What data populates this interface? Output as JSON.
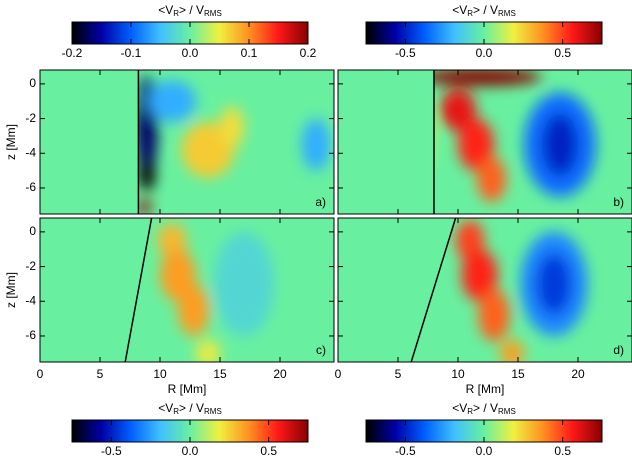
{
  "chart_data": {
    "type": "heatmap",
    "xlabel": "R [Mm]",
    "ylabel": "z [Mm]",
    "xlim": [
      0,
      24.5
    ],
    "ylim": [
      -7.5,
      0.8
    ],
    "xticks": [
      0,
      5,
      10,
      15,
      20
    ],
    "yticks": [
      0,
      -2,
      -4,
      -6
    ],
    "colormap": [
      "#000000",
      "#0000a8",
      "#0060ff",
      "#40c0ff",
      "#68f0a0",
      "#f0f040",
      "#ff9020",
      "#ff1818",
      "#880000"
    ],
    "colorbars": [
      {
        "label": [
          "<V",
          "R",
          "> / V",
          "RMS"
        ],
        "lim": [
          -0.2,
          0.2
        ],
        "ticks": [
          -0.2,
          -0.1,
          {
            "value": 0,
            "label": "0.0"
          },
          0.1,
          0.2
        ]
      },
      {
        "label": [
          "<V",
          "R",
          "> / V",
          "RMS"
        ],
        "lim": [
          -0.75,
          0.75
        ],
        "ticks": [
          -0.5,
          {
            "value": 0,
            "label": "0.0"
          },
          0.5
        ]
      },
      {
        "label": [
          "<V",
          "R",
          "> / V",
          "RMS"
        ],
        "lim": [
          -0.75,
          0.75
        ],
        "ticks": [
          -0.5,
          {
            "value": 0,
            "label": "0.0"
          },
          0.5
        ]
      },
      {
        "label": [
          "<V",
          "R",
          "> / V",
          "RMS"
        ],
        "lim": [
          -0.75,
          0.75
        ],
        "ticks": [
          -0.5,
          {
            "value": 0,
            "label": "0.0"
          },
          0.5
        ]
      }
    ],
    "panels": [
      {
        "label": "a)",
        "background": 0,
        "boundary": [
          8.2,
          8.2
        ],
        "blobs": [
          {
            "R": 8.9,
            "z": -2.5,
            "dR": 0.9,
            "dz": 3,
            "value": -0.17
          },
          {
            "R": 8.9,
            "z": -5.2,
            "dR": 0.7,
            "dz": 1,
            "value": -0.2
          },
          {
            "R": 8.7,
            "z": -7.1,
            "dR": 0.6,
            "dz": 0.4,
            "value": 0.2
          },
          {
            "R": 14,
            "z": -3.8,
            "dR": 2.2,
            "dz": 1.6,
            "value": 0.07
          },
          {
            "R": 16,
            "z": -2.5,
            "dR": 1,
            "dz": 1.2,
            "value": 0.06
          },
          {
            "R": 11,
            "z": -1,
            "dR": 2,
            "dz": 1.2,
            "value": -0.06
          },
          {
            "R": 23,
            "z": -3.5,
            "dR": 1.2,
            "dz": 1.5,
            "value": -0.06
          }
        ]
      },
      {
        "label": "b)",
        "background": 0,
        "boundary": [
          8.0,
          8.0
        ],
        "blobs": [
          {
            "R": 5,
            "z": -3,
            "dR": 3,
            "dz": 3,
            "value": 0.12
          },
          {
            "R": 12,
            "z": 0.4,
            "dR": 5,
            "dz": 0.5,
            "value": 0.75
          },
          {
            "R": 10,
            "z": -1.5,
            "dR": 1.5,
            "dz": 1.2,
            "value": 0.6
          },
          {
            "R": 11.5,
            "z": -3.5,
            "dR": 1.5,
            "dz": 1.5,
            "value": 0.55
          },
          {
            "R": 12.8,
            "z": -5.5,
            "dR": 1.2,
            "dz": 1.3,
            "value": 0.45
          },
          {
            "R": 18.5,
            "z": -3.5,
            "dR": 3,
            "dz": 3,
            "value": -0.35
          },
          {
            "R": 18.5,
            "z": -3.5,
            "dR": 1.5,
            "dz": 1.8,
            "value": -0.5
          }
        ]
      },
      {
        "label": "c)",
        "background": 0,
        "boundary": [
          9.3,
          7.1
        ],
        "blobs": [
          {
            "R": 11,
            "z": -0.5,
            "dR": 1.2,
            "dz": 1,
            "value": 0.3
          },
          {
            "R": 11.5,
            "z": -2.5,
            "dR": 1.5,
            "dz": 1.5,
            "value": 0.35
          },
          {
            "R": 12.8,
            "z": -4.5,
            "dR": 1.3,
            "dz": 1.5,
            "value": 0.35
          },
          {
            "R": 14,
            "z": -7,
            "dR": 1,
            "dz": 0.8,
            "value": 0.2
          },
          {
            "R": 17,
            "z": -3,
            "dR": 2.5,
            "dz": 3,
            "value": -0.1
          }
        ]
      },
      {
        "label": "d)",
        "background": 0,
        "boundary": [
          9.8,
          6.1
        ],
        "blobs": [
          {
            "R": 11,
            "z": -0.5,
            "dR": 1.2,
            "dz": 1.2,
            "value": 0.5
          },
          {
            "R": 11.8,
            "z": -2.5,
            "dR": 1.5,
            "dz": 1.5,
            "value": 0.55
          },
          {
            "R": 13,
            "z": -4.8,
            "dR": 1.3,
            "dz": 1.5,
            "value": 0.45
          },
          {
            "R": 14.5,
            "z": -7,
            "dR": 1,
            "dz": 0.8,
            "value": 0.35
          },
          {
            "R": 18,
            "z": -3,
            "dR": 2.8,
            "dz": 3,
            "value": -0.3
          },
          {
            "R": 18,
            "z": -3,
            "dR": 1.5,
            "dz": 1.8,
            "value": -0.45
          }
        ]
      }
    ]
  }
}
